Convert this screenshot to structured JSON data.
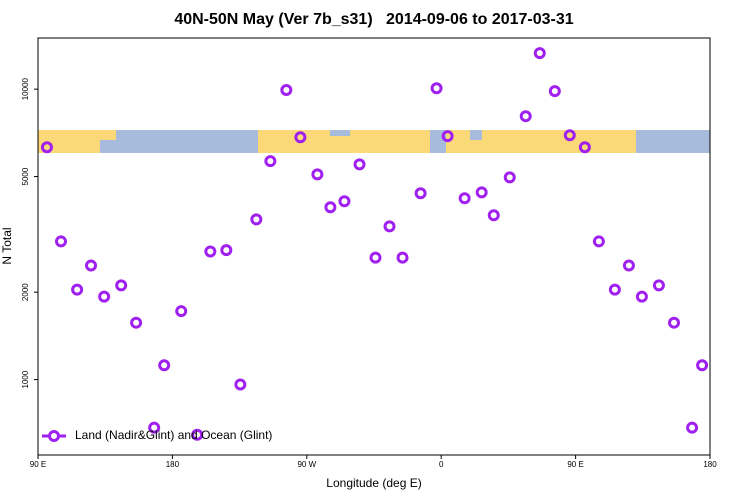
{
  "chart_data": {
    "type": "scatter",
    "title": "40N-50N May (Ver 7b_s31)   2014-09-06 to 2017-03-31",
    "x_label": "Longitude (deg E)",
    "y_label": "N Total",
    "log_y": true,
    "legend": "lower left",
    "xlim": [
      90,
      540
    ],
    "ylim": [
      550,
      15000
    ],
    "xticks": [
      {
        "value": 90,
        "label": "90 E"
      },
      {
        "value": 180,
        "label": "180"
      },
      {
        "value": 270,
        "label": "90 W"
      },
      {
        "value": 360,
        "label": "0"
      },
      {
        "value": 450,
        "label": "90 E"
      },
      {
        "value": 540,
        "label": "180"
      }
    ],
    "yticks": [
      1000,
      2000,
      5000,
      10000
    ],
    "series": [
      {
        "name": "Land (Nadir&Glint) and Ocean (Glint)",
        "color": "#a020f0",
        "x": [
          96,
          105.4,
          116.2,
          125.5,
          134.3,
          145.7,
          155.7,
          167.8,
          174.5,
          185.9,
          196.6,
          205.4,
          216.1,
          225.5,
          236.2,
          245.6,
          256.3,
          265.7,
          277.1,
          285.8,
          295.2,
          305.3,
          316,
          325.4,
          334.1,
          346.2,
          356.9,
          364.3,
          375.7,
          387.1,
          395.2,
          405.9,
          416.6,
          426,
          436.1,
          446.1,
          456.2,
          465.6,
          476.3,
          485.7,
          494.4,
          505.8,
          515.9,
          528,
          534.7
        ],
        "values": [
          6310,
          2990,
          2040,
          2470,
          1930,
          2110,
          1570,
          683,
          1120,
          1720,
          646,
          2760,
          2790,
          962,
          3560,
          5650,
          9930,
          6830,
          5090,
          3920,
          4110,
          5510,
          2630,
          3370,
          2630,
          4380,
          10070,
          6890,
          4210,
          4410,
          3680,
          4970,
          8070,
          13300,
          9840,
          6940,
          6310,
          2990,
          2040,
          2470,
          1930,
          2110,
          1570,
          683,
          1120
        ]
      }
    ]
  }
}
